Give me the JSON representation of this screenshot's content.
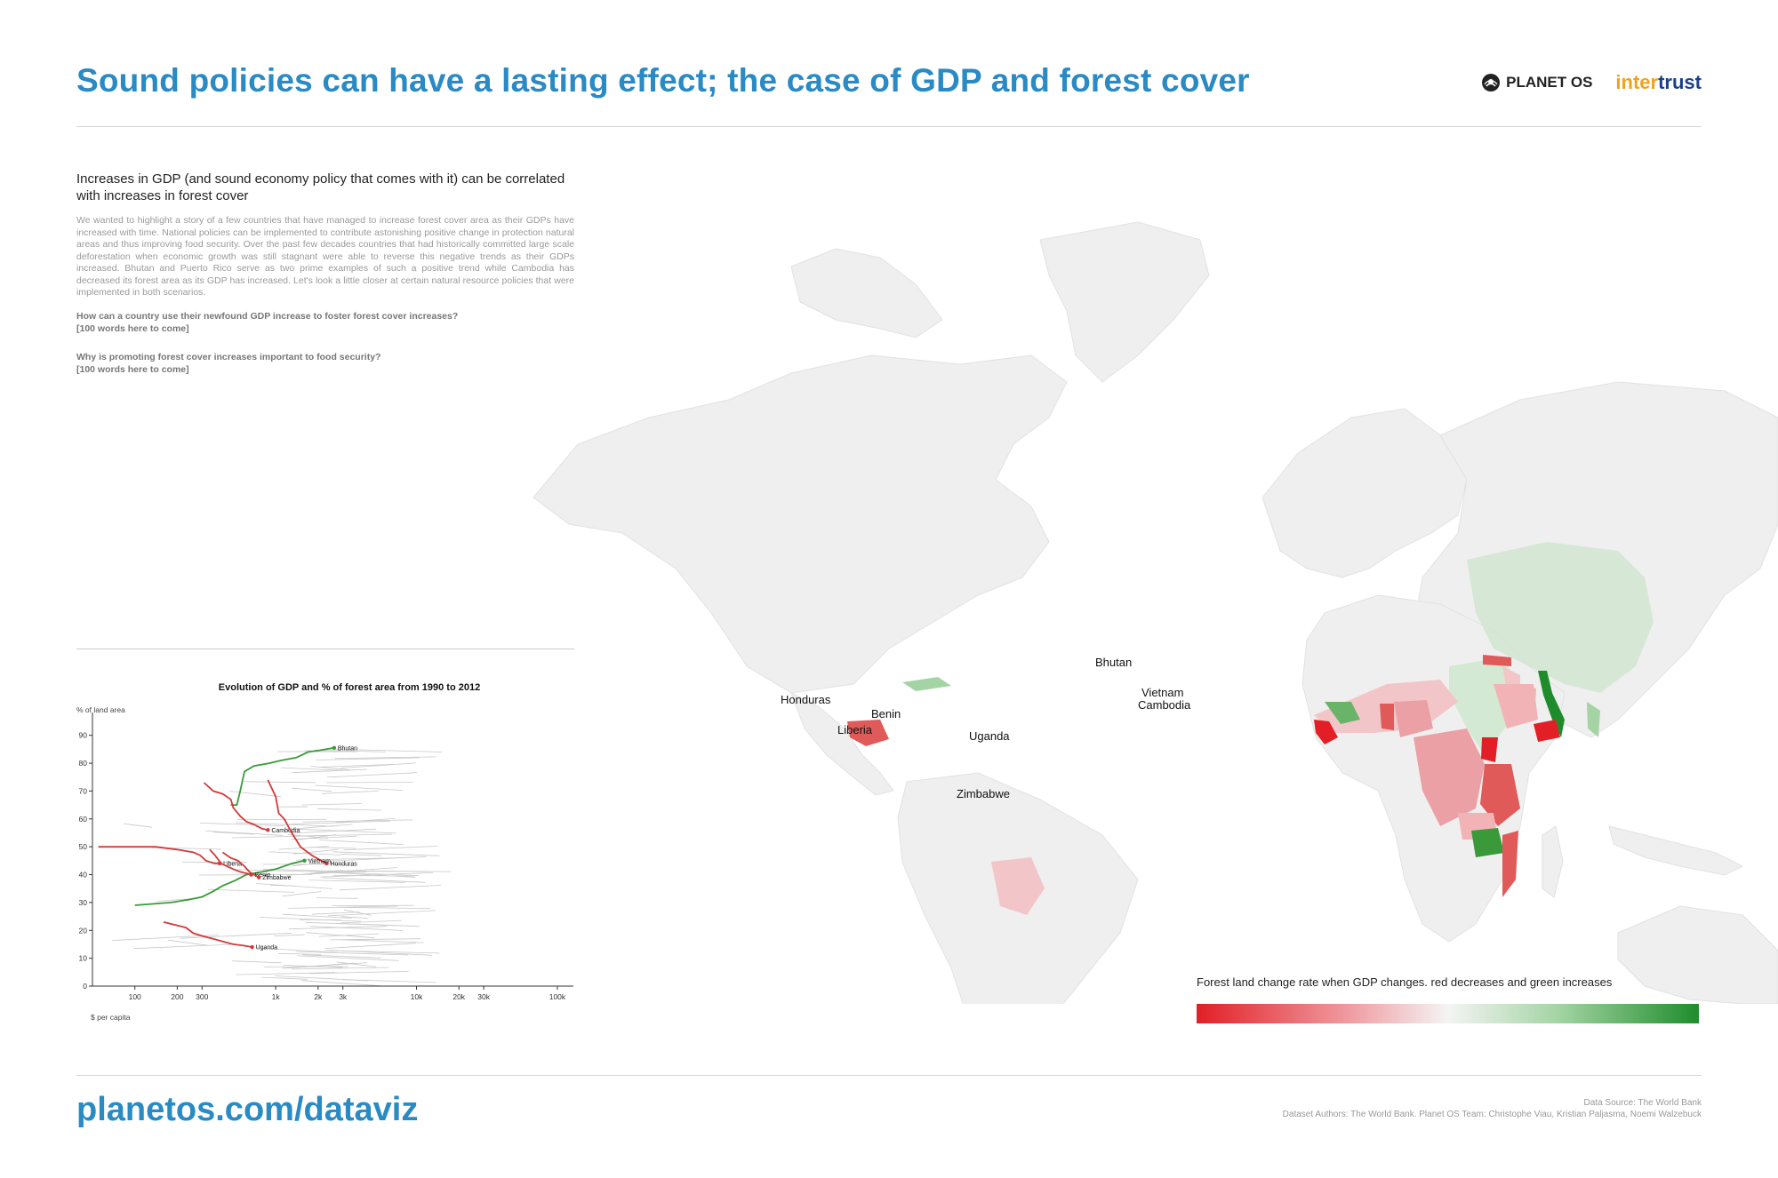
{
  "header": {
    "title": "Sound policies can have a lasting effect; the case of GDP and forest cover",
    "logo_planetos": "PLANET OS",
    "logo_intertrust_a": "inter",
    "logo_intertrust_b": "trust"
  },
  "intro": {
    "subtitle": "Increases in GDP (and sound economy policy that comes with it) can be correlated with increases in forest cover",
    "body": "We wanted to highlight a story of a few countries that have managed to increase forest cover area as their GDPs have increased with time. National policies can be implemented to contribute astonishing positive change in protection natural areas and thus improving food security. Over the past few decades countries that had historically committed large scale deforestation when economic growth was still stagnant were able to reverse this negative trends as their GDPs increased. Bhutan and Puerto Rico serve as two prime examples of such a positive trend while Cambodia has decreased its forest area as its GDP has increased. Let's look a little closer at certain natural resource policies that were implemented in both scenarios.",
    "q1": "How can a country use their newfound GDP increase to foster forest cover increases?",
    "q1_note": "[100 words here to come]",
    "q2": "Why is promoting forest cover increases important to food security?",
    "q2_note": "[100 words here to come]"
  },
  "map": {
    "labels": [
      "Honduras",
      "Liberia",
      "Benin",
      "Uganda",
      "Zimbabwe",
      "Bhutan",
      "Vietnam",
      "Cambodia"
    ],
    "legend_title": "Forest land change rate when GDP changes. red decreases and green increases",
    "colors": {
      "decrease": "#e21f26",
      "neutral": "#f4f4f4",
      "increase": "#1f8c2c",
      "land": "#efefef"
    }
  },
  "footer": {
    "url": "planetos.com/dataviz",
    "source": "Data Source: The World Bank",
    "authors": "Dataset Authors: The World Bank. Planet OS Team: Christophe Viau, Kristian Paljasma, Noemi Walzebuck"
  },
  "chart_data": {
    "type": "line",
    "title": "Evolution of GDP and % of forest area from 1990 to 2012",
    "ylabel": "% of land area",
    "xlabel": "$ per capita",
    "xscale": "log",
    "xlim": [
      50,
      130000
    ],
    "ylim": [
      0,
      95
    ],
    "xticks": [
      {
        "v": 100,
        "label": "100"
      },
      {
        "v": 200,
        "label": "200"
      },
      {
        "v": 300,
        "label": "300"
      },
      {
        "v": 1000,
        "label": "1k"
      },
      {
        "v": 2000,
        "label": "2k"
      },
      {
        "v": 3000,
        "label": "3k"
      },
      {
        "v": 10000,
        "label": "10k"
      },
      {
        "v": 20000,
        "label": "20k"
      },
      {
        "v": 30000,
        "label": "30k"
      },
      {
        "v": 100000,
        "label": "100k"
      }
    ],
    "yticks": [
      0,
      10,
      20,
      30,
      40,
      50,
      60,
      70,
      80,
      90
    ],
    "grid": false,
    "series": [
      {
        "name": "Bhutan",
        "color": "#3a9a3a",
        "points": [
          [
            480,
            65
          ],
          [
            530,
            65
          ],
          [
            560,
            70
          ],
          [
            600,
            77
          ],
          [
            700,
            79
          ],
          [
            900,
            80
          ],
          [
            1100,
            81
          ],
          [
            1400,
            82
          ],
          [
            1700,
            84
          ],
          [
            2000,
            84.5
          ],
          [
            2600,
            85.5
          ]
        ]
      },
      {
        "name": "Cambodia",
        "color": "#d23a3a",
        "points": [
          [
            310,
            73
          ],
          [
            360,
            70
          ],
          [
            420,
            69
          ],
          [
            480,
            67
          ],
          [
            500,
            64
          ],
          [
            560,
            61
          ],
          [
            620,
            59
          ],
          [
            700,
            58
          ],
          [
            800,
            56.5
          ],
          [
            880,
            56
          ]
        ]
      },
      {
        "name": "Honduras",
        "color": "#d23a3a",
        "points": [
          [
            880,
            74
          ],
          [
            1000,
            68
          ],
          [
            1050,
            62
          ],
          [
            1150,
            60
          ],
          [
            1300,
            55
          ],
          [
            1500,
            50
          ],
          [
            1800,
            47
          ],
          [
            2100,
            45
          ],
          [
            2300,
            44
          ]
        ]
      },
      {
        "name": "Vietnam",
        "color": "#3a9a3a",
        "points": [
          [
            100,
            29
          ],
          [
            180,
            30
          ],
          [
            240,
            31
          ],
          [
            300,
            32
          ],
          [
            360,
            34
          ],
          [
            420,
            36
          ],
          [
            520,
            38
          ],
          [
            620,
            40
          ],
          [
            800,
            41
          ],
          [
            1000,
            42
          ],
          [
            1300,
            44
          ],
          [
            1600,
            45
          ]
        ]
      },
      {
        "name": "Liberia",
        "color": "#d23a3a",
        "points": [
          [
            55,
            50
          ],
          [
            80,
            50
          ],
          [
            140,
            50
          ],
          [
            200,
            49
          ],
          [
            260,
            48
          ],
          [
            290,
            47
          ],
          [
            320,
            45
          ],
          [
            370,
            44
          ],
          [
            400,
            44
          ]
        ]
      },
      {
        "name": "Benin",
        "color": "#d23a3a",
        "points": [
          [
            340,
            49
          ],
          [
            370,
            47
          ],
          [
            410,
            44
          ],
          [
            450,
            43
          ],
          [
            500,
            42
          ],
          [
            560,
            41
          ],
          [
            620,
            40.5
          ],
          [
            670,
            40
          ]
        ]
      },
      {
        "name": "Zimbabwe",
        "color": "#d23a3a",
        "points": [
          [
            420,
            48
          ],
          [
            480,
            46
          ],
          [
            540,
            45
          ],
          [
            600,
            43
          ],
          [
            650,
            41
          ],
          [
            700,
            40
          ],
          [
            760,
            39
          ]
        ]
      },
      {
        "name": "Uganda",
        "color": "#d23a3a",
        "points": [
          [
            160,
            23
          ],
          [
            230,
            21
          ],
          [
            260,
            19
          ],
          [
            300,
            18
          ],
          [
            360,
            17
          ],
          [
            420,
            16
          ],
          [
            500,
            15
          ],
          [
            600,
            14.5
          ],
          [
            680,
            14
          ]
        ]
      }
    ]
  }
}
